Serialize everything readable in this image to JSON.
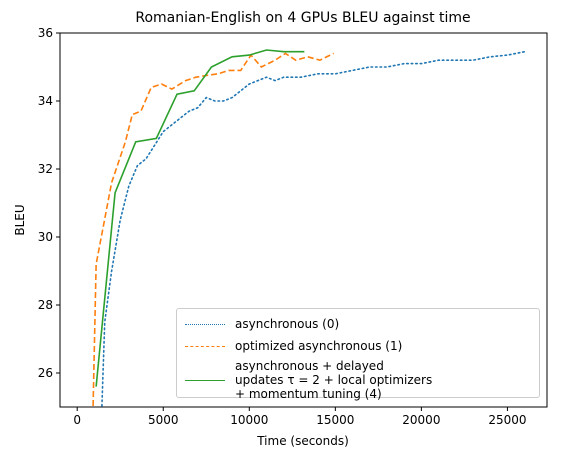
{
  "chart_data": {
    "type": "line",
    "title": "Romanian-English on 4 GPUs BLEU against time",
    "xlabel": "Time (seconds)",
    "ylabel": "BLEU",
    "xlim": [
      -1000,
      27300
    ],
    "ylim": [
      25,
      36
    ],
    "xticks": [
      0,
      5000,
      10000,
      15000,
      20000,
      25000
    ],
    "yticks": [
      26,
      28,
      30,
      32,
      34,
      36
    ],
    "legend": "lower right",
    "series": [
      {
        "name": "asynchronous (0)",
        "color": "#1f77b4",
        "dash": "dotted",
        "x": [
          1400,
          1600,
          2000,
          2500,
          3000,
          3500,
          4000,
          4500,
          5000,
          5500,
          6000,
          6500,
          7000,
          7500,
          8000,
          8500,
          9000,
          9500,
          10000,
          10500,
          11000,
          11500,
          12000,
          13000,
          14000,
          15000,
          16000,
          17000,
          18000,
          19000,
          20000,
          21000,
          22000,
          23000,
          24000,
          25000,
          26000
        ],
        "values": [
          24.5,
          27.5,
          29,
          30.5,
          31.5,
          32.1,
          32.3,
          32.7,
          33.1,
          33.3,
          33.5,
          33.7,
          33.8,
          34.1,
          34.0,
          34.0,
          34.1,
          34.3,
          34.5,
          34.6,
          34.7,
          34.6,
          34.7,
          34.7,
          34.8,
          34.8,
          34.9,
          35.0,
          35.0,
          35.1,
          35.1,
          35.2,
          35.2,
          35.2,
          35.3,
          35.35,
          35.45
        ]
      },
      {
        "name": "optimized asynchronous (1)",
        "color": "#ff7f0e",
        "dash": "dashed",
        "x": [
          900,
          1100,
          2000,
          2800,
          3200,
          3700,
          4300,
          4900,
          5500,
          6300,
          6900,
          7500,
          8200,
          8800,
          9500,
          10100,
          10700,
          11500,
          12100,
          12700,
          13400,
          14100,
          14900
        ],
        "values": [
          24.5,
          29.2,
          31.6,
          32.8,
          33.6,
          33.7,
          34.4,
          34.5,
          34.35,
          34.6,
          34.7,
          34.75,
          34.8,
          34.9,
          34.9,
          35.35,
          35.0,
          35.2,
          35.4,
          35.2,
          35.3,
          35.2,
          35.4
        ]
      },
      {
        "name": "asynchronous + delayed updates τ = 2 + local optimizers + momentum tuning (4)",
        "color": "#2ca02c",
        "dash": "solid",
        "x": [
          1100,
          2200,
          3400,
          4600,
          5800,
          6800,
          7800,
          9000,
          10000,
          11000,
          12000,
          13200
        ],
        "values": [
          25.6,
          31.3,
          32.8,
          32.9,
          34.2,
          34.3,
          35.0,
          35.3,
          35.35,
          35.5,
          35.45,
          35.45
        ]
      }
    ]
  }
}
